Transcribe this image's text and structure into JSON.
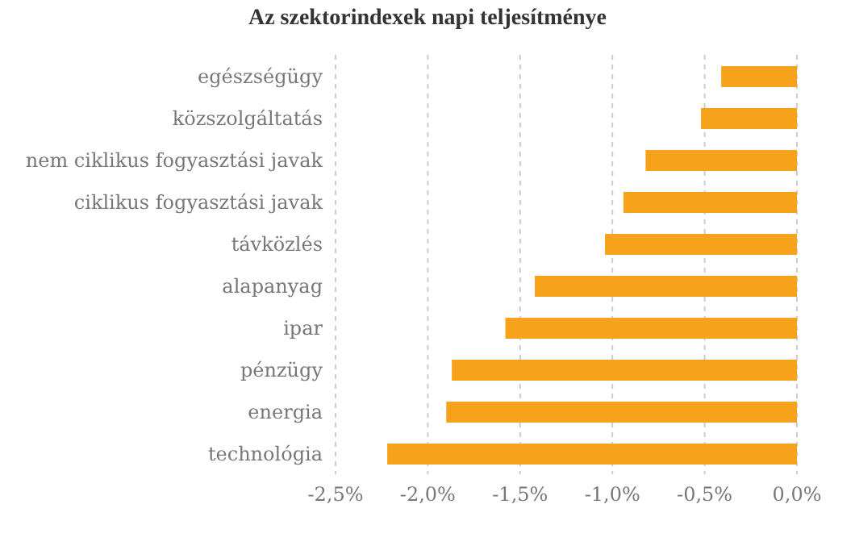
{
  "chart_data": {
    "type": "bar",
    "orientation": "horizontal",
    "title": "Az szektorindexek napi teljesítménye",
    "categories": [
      "egészségügy",
      "közszolgáltatás",
      "nem ciklikus fogyasztási javak",
      "ciklikus fogyasztási javak",
      "távközlés",
      "alapanyag",
      "ipar",
      "pénzügy",
      "energia",
      "technológia"
    ],
    "values": [
      -0.41,
      -0.52,
      -0.82,
      -0.94,
      -1.04,
      -1.42,
      -1.58,
      -1.87,
      -1.9,
      -2.22
    ],
    "color": "#f7a21b",
    "xlim": [
      -2.5,
      0
    ],
    "xticks": [
      {
        "value": -2.5,
        "label": "-2,5%"
      },
      {
        "value": -2,
        "label": "-2,0%"
      },
      {
        "value": -1.5,
        "label": "-1,5%"
      },
      {
        "value": -1,
        "label": "-1,0%"
      },
      {
        "value": -0.5,
        "label": "-0,5%"
      },
      {
        "value": 0,
        "label": "0,0%"
      }
    ],
    "grid": "x"
  }
}
